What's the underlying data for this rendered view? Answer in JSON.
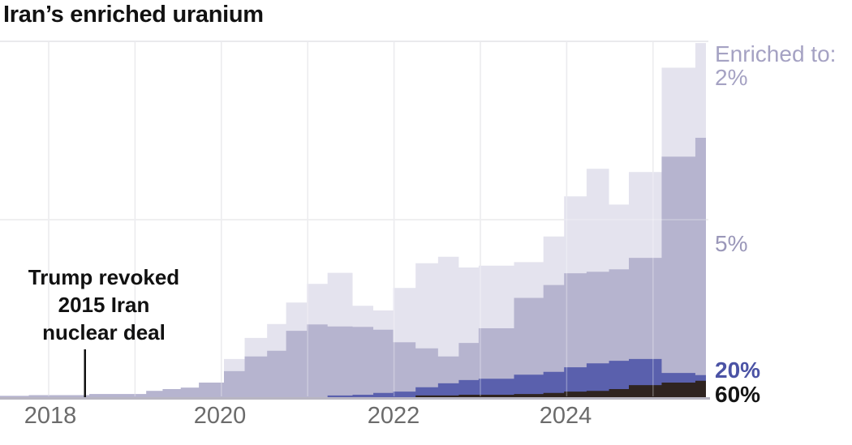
{
  "title": "Iran’s enriched uranium",
  "annotation": {
    "lines": [
      "Trump revoked",
      "2015 Iran",
      "nuclear deal"
    ],
    "x_year": 2018.42
  },
  "x_axis": {
    "ticks": [
      "2018",
      "2020",
      "2022",
      "2024"
    ]
  },
  "legend": {
    "heading": "Enriched to:",
    "items": [
      {
        "label": "2%",
        "color": "#a5a2c3"
      },
      {
        "label": "5%",
        "color": "#9a97b9"
      },
      {
        "label": "20%",
        "color": "#4b53a5"
      },
      {
        "label": "60%",
        "color": "#141414"
      }
    ]
  },
  "chart_data": {
    "type": "area",
    "subtype": "stacked-step",
    "title": "Iran’s enriched uranium",
    "xlabel": "",
    "ylabel": "",
    "x_units": "decimal year",
    "y_units": "relative units (0-100 = chart top; horizontal gridlines at 0, 50, 100; y-axis unlabeled in source)",
    "xlim": [
      2017.43,
      2025.62
    ],
    "ylim": [
      0,
      100
    ],
    "grid": "on",
    "x_gridline_years": [
      2018,
      2019,
      2020,
      2021,
      2022,
      2023,
      2024,
      2025
    ],
    "x_tick_years": [
      2018,
      2020,
      2022,
      2024
    ],
    "legend_position": "right",
    "step_start_x": [
      2017.43,
      2017.77,
      2018.47,
      2019.13,
      2019.32,
      2019.53,
      2019.74,
      2020.03,
      2020.27,
      2020.53,
      2020.75,
      2020.99,
      2021.23,
      2021.52,
      2021.76,
      2021.99,
      2022.25,
      2022.51,
      2022.75,
      2022.98,
      2023.39,
      2023.73,
      2023.97,
      2024.23,
      2024.49,
      2024.72,
      2025.1,
      2025.49
    ],
    "x_end": 2025.62,
    "stack_order_bottom_to_top": [
      "60%",
      "20%",
      "5%",
      "2%"
    ],
    "series": [
      {
        "name": "2%",
        "color": "#e4e3ee",
        "values": [
          0,
          0,
          0,
          0,
          0,
          0,
          0,
          3.4,
          5.2,
          7.5,
          7.9,
          11.3,
          15.0,
          5.9,
          5.4,
          15.2,
          23.8,
          27.9,
          21.1,
          17.5,
          10.0,
          13.6,
          21.5,
          28.8,
          18.1,
          24.0,
          24.9,
          26.5
        ]
      },
      {
        "name": "5%",
        "color": "#b6b4cf",
        "values": [
          0.6,
          0.8,
          1.1,
          2.0,
          2.5,
          2.9,
          4.3,
          7.5,
          11.6,
          13.2,
          18.8,
          20.6,
          19.3,
          19.0,
          17.7,
          13.8,
          10.9,
          7.5,
          10.4,
          14.1,
          21.5,
          24.3,
          26.3,
          25.6,
          25.6,
          28.3,
          60.5,
          66.4
        ]
      },
      {
        "name": "20%",
        "color": "#5a60ad",
        "values": [
          0,
          0,
          0,
          0,
          0,
          0,
          0,
          0,
          0,
          0,
          0,
          0,
          0.7,
          0.9,
          1.4,
          1.6,
          2.3,
          3.4,
          4.1,
          4.5,
          5.4,
          5.9,
          6.8,
          7.7,
          7.9,
          7.3,
          2.7,
          1.6
        ]
      },
      {
        "name": "60%",
        "color": "#2f2420",
        "values": [
          0,
          0,
          0,
          0,
          0,
          0,
          0,
          0,
          0,
          0,
          0,
          0,
          0,
          0,
          0,
          0.2,
          0.7,
          0.7,
          0.9,
          0.9,
          1.1,
          1.4,
          1.8,
          2.0,
          2.5,
          3.6,
          4.3,
          4.8
        ]
      }
    ],
    "annotations": [
      {
        "text": "Trump revoked 2015 Iran nuclear deal",
        "x_year": 2018.42,
        "marker": "vertical-line"
      }
    ]
  }
}
